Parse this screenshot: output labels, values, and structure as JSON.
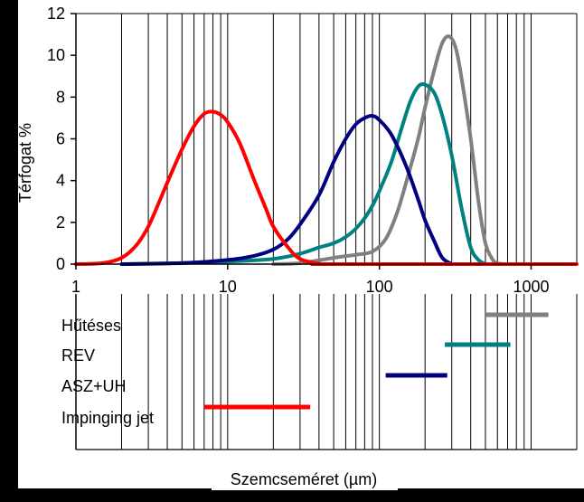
{
  "chart_data": {
    "type": "line",
    "x_scale": "log",
    "xlim": [
      1,
      2000
    ],
    "ylim": [
      0,
      12
    ],
    "ylabel": "Térfogat %",
    "xlabel": "Szemcseméret (µm)",
    "x_ticks": [
      1,
      10,
      100,
      1000
    ],
    "x_tick_labels": [
      "1",
      "10",
      "100",
      "1000"
    ],
    "y_ticks": [
      0,
      2,
      4,
      6,
      8,
      10,
      12
    ],
    "y_tick_labels": [
      "0",
      "2",
      "4",
      "6",
      "8",
      "10",
      "12"
    ],
    "grid": "vertical log grid lines",
    "series": [
      {
        "name": "Hűtéses",
        "color": "#808080",
        "x": [
          20,
          30,
          50,
          70,
          90,
          110,
          130,
          150,
          180,
          200,
          230,
          260,
          290,
          320,
          350,
          400,
          450,
          500,
          560,
          600,
          650
        ],
        "y": [
          0,
          0.05,
          0.3,
          0.45,
          0.6,
          1.2,
          2.4,
          3.9,
          6.0,
          7.5,
          9.3,
          10.6,
          10.9,
          10.3,
          8.8,
          6.0,
          3.0,
          1.0,
          0.2,
          0.05,
          0
        ],
        "range": [
          500,
          1300
        ]
      },
      {
        "name": "REV",
        "color": "#008080",
        "x": [
          2,
          5,
          10,
          20,
          30,
          40,
          50,
          60,
          70,
          80,
          90,
          100,
          120,
          140,
          160,
          180,
          200,
          230,
          260,
          300,
          350,
          400,
          450,
          500
        ],
        "y": [
          0,
          0.05,
          0.12,
          0.25,
          0.5,
          0.8,
          1.0,
          1.3,
          1.7,
          2.2,
          2.8,
          3.5,
          4.9,
          6.5,
          7.8,
          8.5,
          8.6,
          8.2,
          7.1,
          5.2,
          2.6,
          0.8,
          0.2,
          0
        ],
        "range": [
          270,
          730
        ]
      },
      {
        "name": "ASZ+UH",
        "color": "#000080",
        "x": [
          2,
          5,
          10,
          15,
          20,
          25,
          30,
          40,
          50,
          60,
          70,
          80,
          90,
          100,
          120,
          150,
          180,
          200,
          230,
          260,
          300
        ],
        "y": [
          0,
          0.05,
          0.2,
          0.4,
          0.7,
          1.2,
          1.9,
          3.3,
          4.9,
          6.0,
          6.7,
          7.0,
          7.1,
          6.9,
          6.2,
          4.7,
          3.1,
          2.1,
          1.1,
          0.3,
          0
        ],
        "range": [
          110,
          280
        ]
      },
      {
        "name": "Impinging jet",
        "color": "#FF0000",
        "x": [
          1,
          1.5,
          2,
          2.5,
          3,
          3.5,
          4,
          5,
          6,
          7,
          8,
          9,
          10,
          12,
          15,
          18,
          20,
          25,
          30,
          40,
          50,
          2000
        ],
        "y": [
          0,
          0.05,
          0.3,
          0.9,
          1.8,
          2.9,
          3.9,
          5.5,
          6.6,
          7.2,
          7.3,
          7.15,
          6.8,
          5.8,
          4.0,
          2.6,
          1.8,
          0.8,
          0.25,
          0.02,
          0,
          0
        ],
        "range": [
          7,
          35
        ]
      }
    ]
  }
}
